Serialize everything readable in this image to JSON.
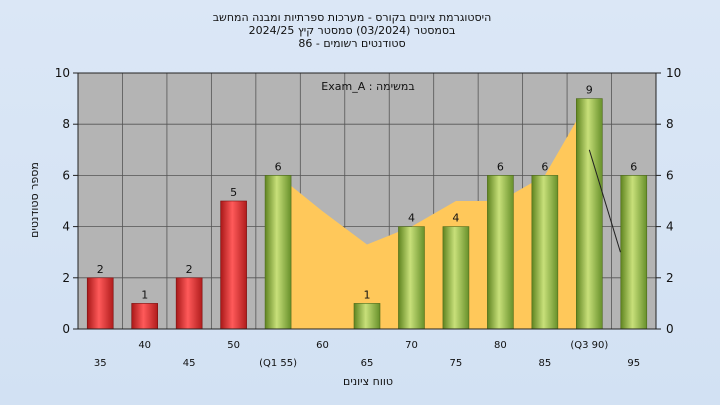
{
  "chart_data": {
    "type": "bar",
    "title_lines": [
      "היסטוגרמת ציונים בקורס - מערכות ספרתיות ומבנה המחשב",
      "בסמסטר  (03/2024)  סמסטר קיץ  2024/25",
      "סטודנטים רשומים - 86"
    ],
    "task_label": "במשימה : Exam_A",
    "xlabel": "טווח ציונים",
    "ylabel": "מספר סטודנטים",
    "ylim": [
      0,
      10
    ],
    "yticks": [
      "0",
      "2",
      "4",
      "6",
      "8",
      "10"
    ],
    "grid": true,
    "categories": [
      "35",
      "40",
      "45",
      "50",
      "(Q1 55)",
      "60",
      "65",
      "70",
      "75",
      "80",
      "85",
      "(Q3 90)",
      "95"
    ],
    "values": [
      2,
      1,
      2,
      5,
      6,
      0,
      1,
      4,
      4,
      6,
      6,
      9,
      6
    ],
    "value_labels": [
      "2",
      "1",
      "2",
      "5",
      "6",
      "",
      "1",
      "4",
      "4",
      "6",
      "6",
      "9",
      "6"
    ],
    "bar_colors": [
      "#d93030",
      "#d93030",
      "#d93030",
      "#d93030",
      "#8fb53c",
      "#8fb53c",
      "#8fb53c",
      "#8fb53c",
      "#8fb53c",
      "#8fb53c",
      "#8fb53c",
      "#8fb53c",
      "#8fb53c"
    ],
    "area_values": [
      null,
      null,
      null,
      null,
      6,
      4.6,
      3.3,
      4,
      5,
      5,
      6,
      9,
      null
    ],
    "trend_line": [
      {
        "x": 11,
        "y": 7
      },
      {
        "x": 11.7,
        "y": 3
      }
    ],
    "colors": {
      "plot_background": "#b4b4b4",
      "area_fill": "#ffc85a",
      "fail_bar": "#d93030",
      "pass_bar": "#8fb53c"
    }
  }
}
